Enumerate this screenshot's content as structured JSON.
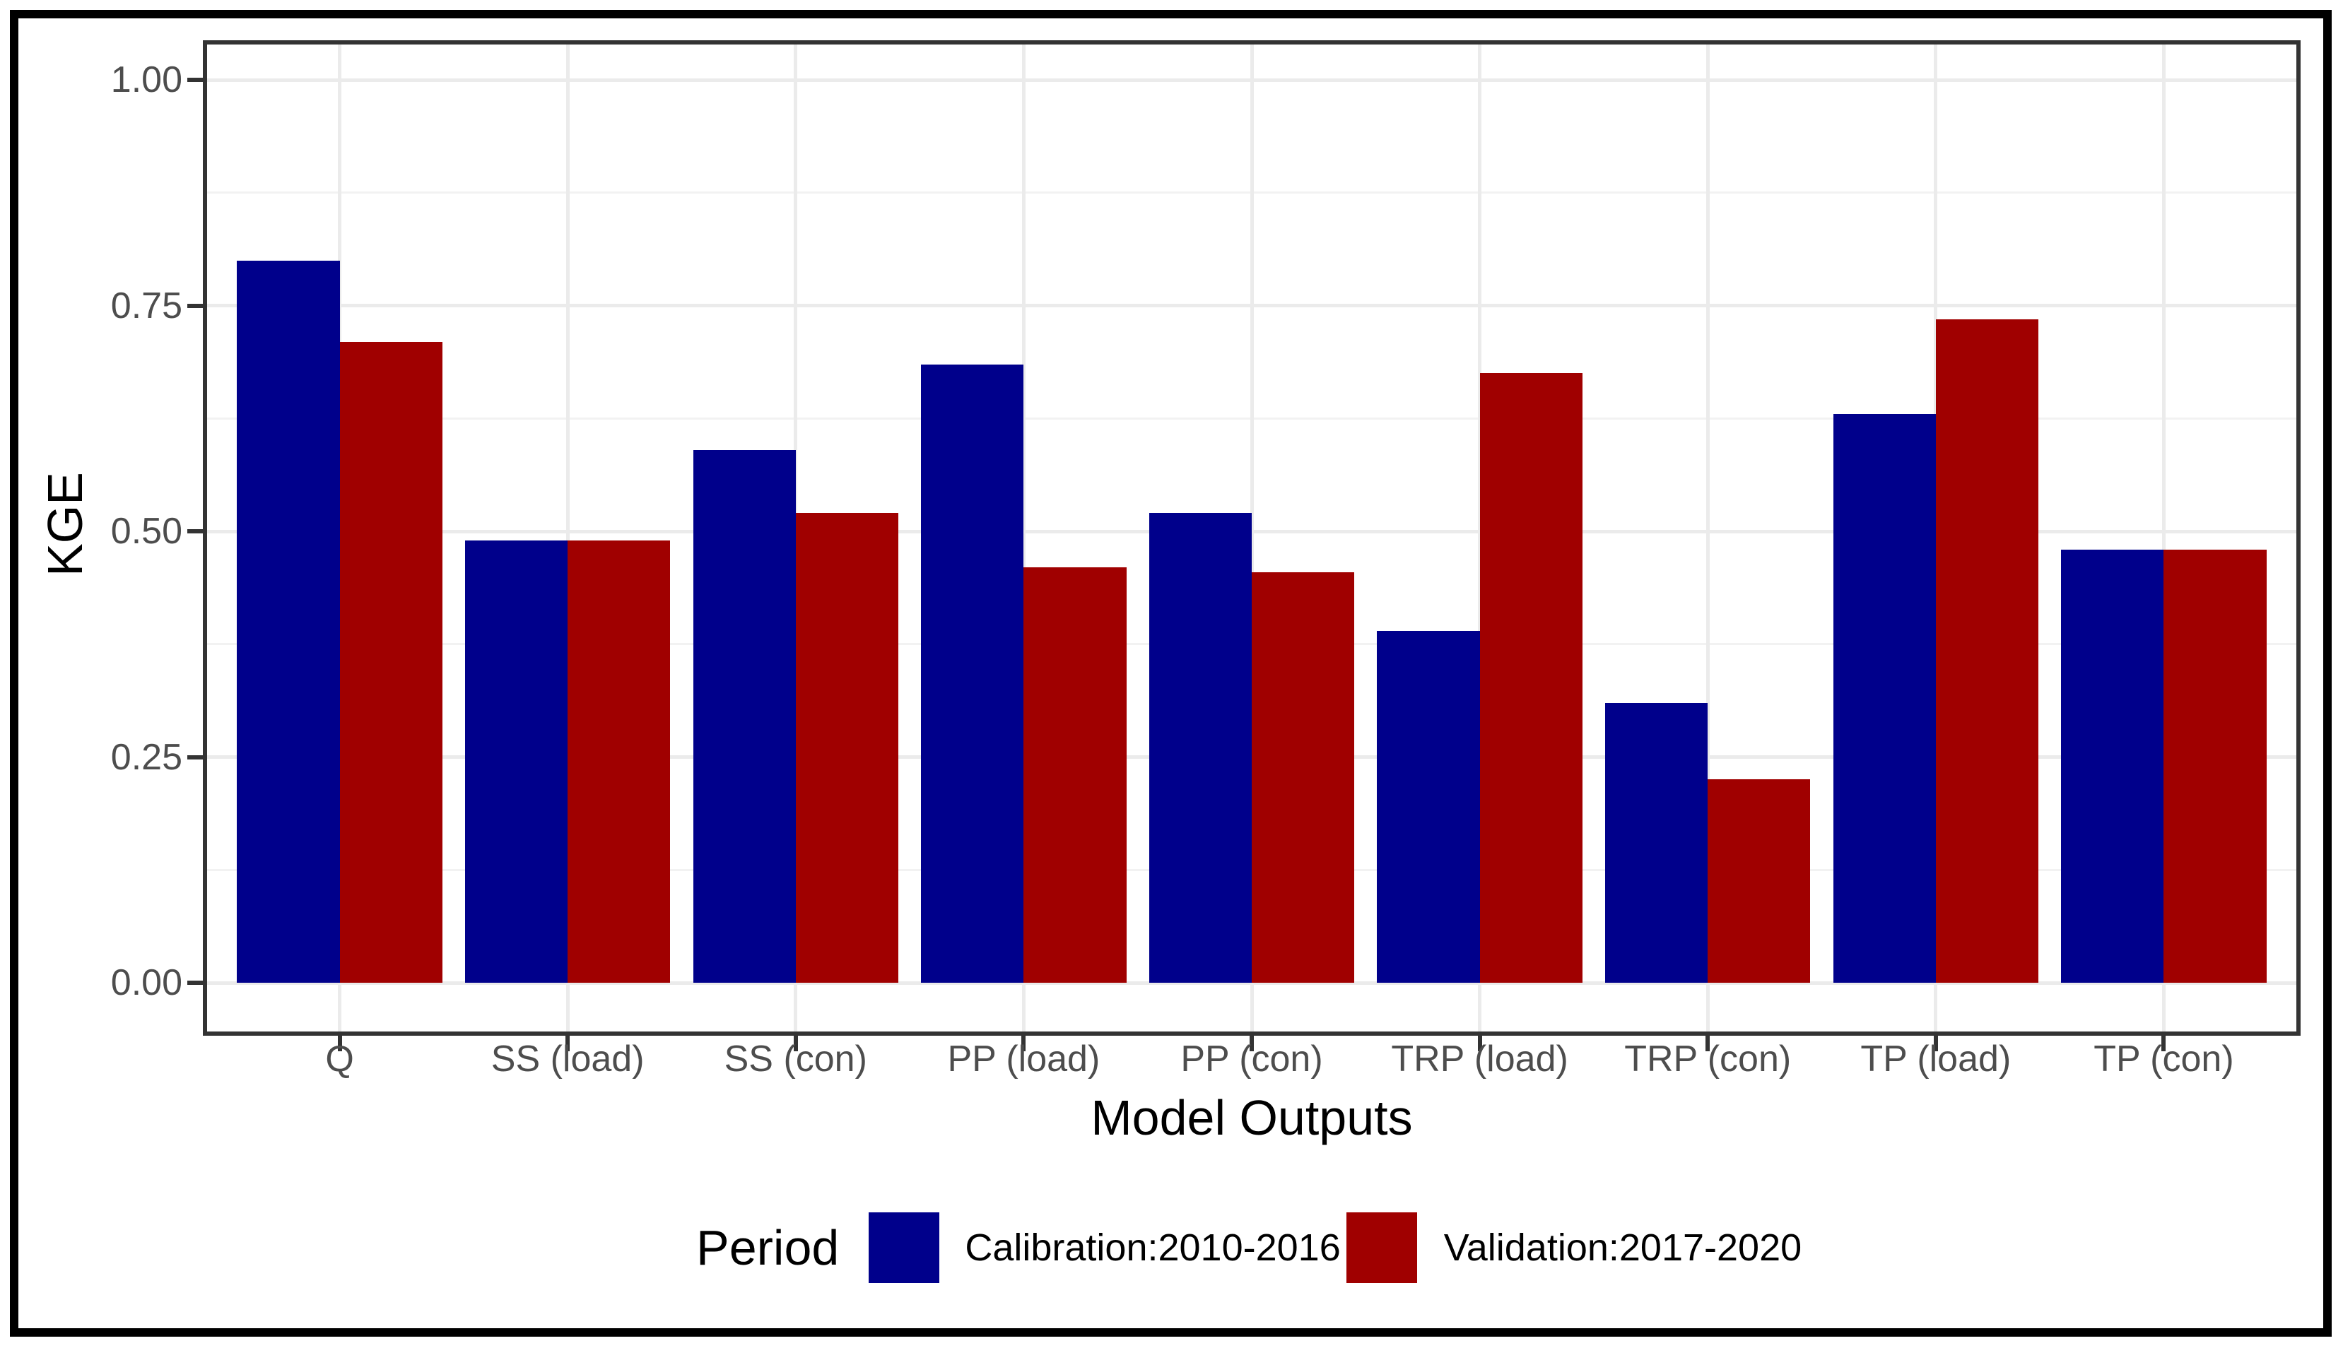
{
  "figure": {
    "background": "#FFFFFF",
    "frame_color": "#000000",
    "legend": {
      "title": "Period",
      "position": "bottom",
      "items": [
        {
          "label": "Calibration:2010-2016",
          "color": "#00008B"
        },
        {
          "label": "Validation:2017-2020",
          "color": "#A00000"
        }
      ]
    }
  },
  "chart_data": {
    "type": "bar",
    "title": "",
    "categories": [
      "Q",
      "SS (load)",
      "SS (con)",
      "PP (load)",
      "PP (con)",
      "TRP (load)",
      "TRP (con)",
      "TP (load)",
      "TP (con)"
    ],
    "series": [
      {
        "name": "Calibration:2010-2016",
        "color": "#00008B",
        "values": [
          0.8,
          0.49,
          0.59,
          0.685,
          0.52,
          0.39,
          0.31,
          0.63,
          0.48
        ]
      },
      {
        "name": "Validation:2017-2020",
        "color": "#A00000",
        "values": [
          0.71,
          0.49,
          0.52,
          0.46,
          0.455,
          0.675,
          0.225,
          0.735,
          0.48
        ]
      }
    ],
    "xlabel": "Model Outputs",
    "ylabel": "KGE",
    "ylim": [
      0,
      1.04
    ],
    "y_ticks": [
      {
        "value": 0.0,
        "label": "0.00"
      },
      {
        "value": 0.25,
        "label": "0.25"
      },
      {
        "value": 0.5,
        "label": "0.50"
      },
      {
        "value": 0.75,
        "label": "0.75"
      },
      {
        "value": 1.0,
        "label": "1.00"
      }
    ],
    "y_minor_ticks": [
      0.125,
      0.375,
      0.625,
      0.875
    ],
    "grid": true,
    "legend_position": "bottom",
    "bar_layout": "dodged"
  },
  "style": {
    "grid_major_color": "#EBEBEB",
    "grid_minor_color": "#F2F2F2",
    "panel_border_color": "#333333",
    "tick_color": "#333333",
    "tick_label_color": "#4D4D4D",
    "text_color": "#000000"
  }
}
